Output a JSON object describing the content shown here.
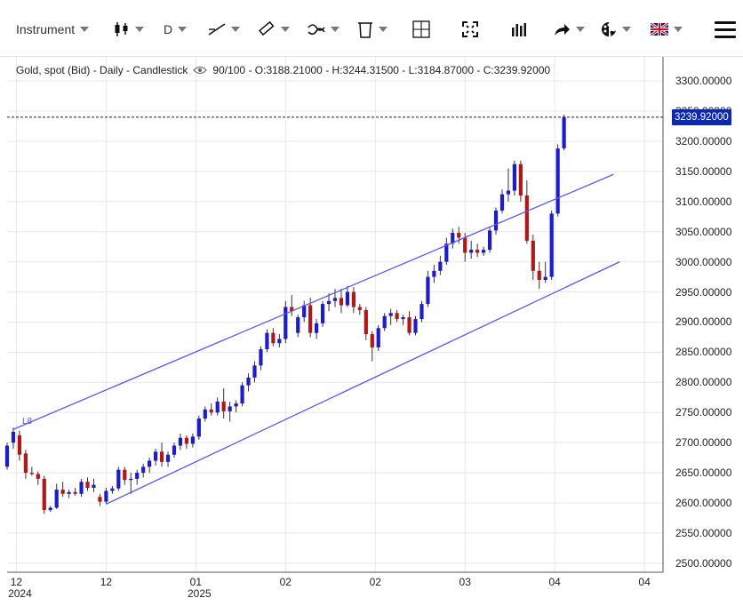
{
  "toolbar": {
    "instrument_label": "Instrument",
    "period_label": "D",
    "icons": [
      "candlestick-icon",
      "trend-line-icon",
      "ruler-icon",
      "overlay-icon",
      "delete-icon",
      "crosshair-icon",
      "fullscreen-icon",
      "volume-icon",
      "share-icon",
      "theme-icon",
      "uk-flag-icon",
      "hamburger-menu-icon"
    ]
  },
  "chart_data": {
    "type": "candlestick",
    "title": "Gold, spot (Bid) - Daily - Candlestick",
    "zoom": "90/100",
    "ohlc_readout": {
      "open": "O:3188.21000",
      "high": "H:3244.31500",
      "low": "L:3184.87000",
      "close": "C:3239.92000"
    },
    "last_price_label": "3239.92000",
    "last_price": 3239.92,
    "ylim": [
      2485,
      3340
    ],
    "y_ticks": [
      "3300.00000",
      "3250.00000",
      "3200.00000",
      "3150.00000",
      "3100.00000",
      "3050.00000",
      "3000.00000",
      "2950.00000",
      "2900.00000",
      "2850.00000",
      "2800.00000",
      "2750.00000",
      "2700.00000",
      "2650.00000",
      "2600.00000",
      "2550.00000",
      "2500.00000"
    ],
    "y_tick_values": [
      3300,
      3250,
      3200,
      3150,
      3100,
      3050,
      3000,
      2950,
      2900,
      2850,
      2800,
      2750,
      2700,
      2650,
      2600,
      2550,
      2500
    ],
    "x_ticks": [
      {
        "label": "12",
        "sublabel": "2024",
        "index": 1.5
      },
      {
        "label": "12",
        "sublabel": "",
        "index": 16
      },
      {
        "label": "01",
        "sublabel": "2025",
        "index": 30.5
      },
      {
        "label": "02",
        "sublabel": "",
        "index": 45
      },
      {
        "label": "02",
        "sublabel": "",
        "index": 59.5
      },
      {
        "label": "03",
        "sublabel": "",
        "index": 74
      },
      {
        "label": "04",
        "sublabel": "",
        "index": 88.5
      },
      {
        "label": "04",
        "sublabel": "",
        "index": 103
      }
    ],
    "x_range": [
      0,
      106
    ],
    "grid": true,
    "channel_lines": [
      {
        "name": "L8",
        "from": [
          1,
          2722
        ],
        "to": [
          98,
          3145
        ]
      },
      {
        "name": "",
        "from": [
          16,
          2598
        ],
        "to": [
          99,
          3000
        ]
      }
    ],
    "bullish_color": "#1c1cc8",
    "bearish_color": "#b01818",
    "candles": [
      {
        "o": 2660,
        "h": 2700,
        "l": 2655,
        "c": 2695
      },
      {
        "o": 2700,
        "h": 2725,
        "l": 2690,
        "c": 2718
      },
      {
        "o": 2712,
        "h": 2720,
        "l": 2670,
        "c": 2680
      },
      {
        "o": 2682,
        "h": 2688,
        "l": 2640,
        "c": 2650
      },
      {
        "o": 2650,
        "h": 2660,
        "l": 2645,
        "c": 2648
      },
      {
        "o": 2648,
        "h": 2652,
        "l": 2630,
        "c": 2640
      },
      {
        "o": 2640,
        "h": 2645,
        "l": 2582,
        "c": 2588
      },
      {
        "o": 2588,
        "h": 2595,
        "l": 2585,
        "c": 2592
      },
      {
        "o": 2592,
        "h": 2632,
        "l": 2590,
        "c": 2622
      },
      {
        "o": 2622,
        "h": 2635,
        "l": 2610,
        "c": 2615
      },
      {
        "o": 2615,
        "h": 2622,
        "l": 2608,
        "c": 2618
      },
      {
        "o": 2618,
        "h": 2625,
        "l": 2612,
        "c": 2615
      },
      {
        "o": 2615,
        "h": 2640,
        "l": 2610,
        "c": 2635
      },
      {
        "o": 2635,
        "h": 2642,
        "l": 2620,
        "c": 2625
      },
      {
        "o": 2625,
        "h": 2640,
        "l": 2618,
        "c": 2630
      },
      {
        "o": 2610,
        "h": 2615,
        "l": 2595,
        "c": 2602
      },
      {
        "o": 2602,
        "h": 2625,
        "l": 2598,
        "c": 2620
      },
      {
        "o": 2620,
        "h": 2628,
        "l": 2615,
        "c": 2624
      },
      {
        "o": 2624,
        "h": 2660,
        "l": 2620,
        "c": 2655
      },
      {
        "o": 2655,
        "h": 2660,
        "l": 2630,
        "c": 2638
      },
      {
        "o": 2638,
        "h": 2650,
        "l": 2615,
        "c": 2640
      },
      {
        "o": 2640,
        "h": 2655,
        "l": 2630,
        "c": 2650
      },
      {
        "o": 2650,
        "h": 2665,
        "l": 2642,
        "c": 2660
      },
      {
        "o": 2660,
        "h": 2675,
        "l": 2650,
        "c": 2670
      },
      {
        "o": 2670,
        "h": 2690,
        "l": 2662,
        "c": 2685
      },
      {
        "o": 2685,
        "h": 2700,
        "l": 2660,
        "c": 2668
      },
      {
        "o": 2668,
        "h": 2685,
        "l": 2660,
        "c": 2680
      },
      {
        "o": 2680,
        "h": 2700,
        "l": 2675,
        "c": 2695
      },
      {
        "o": 2695,
        "h": 2715,
        "l": 2688,
        "c": 2708
      },
      {
        "o": 2708,
        "h": 2712,
        "l": 2690,
        "c": 2698
      },
      {
        "o": 2698,
        "h": 2715,
        "l": 2692,
        "c": 2710
      },
      {
        "o": 2710,
        "h": 2745,
        "l": 2705,
        "c": 2740
      },
      {
        "o": 2740,
        "h": 2760,
        "l": 2735,
        "c": 2755
      },
      {
        "o": 2755,
        "h": 2765,
        "l": 2745,
        "c": 2750
      },
      {
        "o": 2750,
        "h": 2775,
        "l": 2745,
        "c": 2768
      },
      {
        "o": 2768,
        "h": 2790,
        "l": 2740,
        "c": 2752
      },
      {
        "o": 2752,
        "h": 2768,
        "l": 2735,
        "c": 2760
      },
      {
        "o": 2760,
        "h": 2770,
        "l": 2750,
        "c": 2765
      },
      {
        "o": 2765,
        "h": 2800,
        "l": 2760,
        "c": 2795
      },
      {
        "o": 2795,
        "h": 2815,
        "l": 2785,
        "c": 2808
      },
      {
        "o": 2808,
        "h": 2835,
        "l": 2800,
        "c": 2828
      },
      {
        "o": 2828,
        "h": 2860,
        "l": 2820,
        "c": 2855
      },
      {
        "o": 2855,
        "h": 2888,
        "l": 2850,
        "c": 2882
      },
      {
        "o": 2882,
        "h": 2890,
        "l": 2860,
        "c": 2865
      },
      {
        "o": 2865,
        "h": 2880,
        "l": 2858,
        "c": 2872
      },
      {
        "o": 2872,
        "h": 2935,
        "l": 2865,
        "c": 2925
      },
      {
        "o": 2925,
        "h": 2945,
        "l": 2910,
        "c": 2918
      },
      {
        "o": 2882,
        "h": 2912,
        "l": 2875,
        "c": 2908
      },
      {
        "o": 2908,
        "h": 2935,
        "l": 2900,
        "c": 2928
      },
      {
        "o": 2928,
        "h": 2940,
        "l": 2875,
        "c": 2882
      },
      {
        "o": 2882,
        "h": 2905,
        "l": 2872,
        "c": 2898
      },
      {
        "o": 2898,
        "h": 2935,
        "l": 2892,
        "c": 2930
      },
      {
        "o": 2930,
        "h": 2948,
        "l": 2918,
        "c": 2935
      },
      {
        "o": 2935,
        "h": 2955,
        "l": 2925,
        "c": 2940
      },
      {
        "o": 2940,
        "h": 2955,
        "l": 2915,
        "c": 2928
      },
      {
        "o": 2928,
        "h": 2960,
        "l": 2925,
        "c": 2950
      },
      {
        "o": 2950,
        "h": 2958,
        "l": 2915,
        "c": 2925
      },
      {
        "o": 2925,
        "h": 2930,
        "l": 2912,
        "c": 2920
      },
      {
        "o": 2920,
        "h": 2925,
        "l": 2870,
        "c": 2880
      },
      {
        "o": 2880,
        "h": 2885,
        "l": 2835,
        "c": 2858
      },
      {
        "o": 2858,
        "h": 2895,
        "l": 2852,
        "c": 2890
      },
      {
        "o": 2890,
        "h": 2915,
        "l": 2885,
        "c": 2910
      },
      {
        "o": 2910,
        "h": 2922,
        "l": 2895,
        "c": 2915
      },
      {
        "o": 2915,
        "h": 2920,
        "l": 2900,
        "c": 2905
      },
      {
        "o": 2905,
        "h": 2912,
        "l": 2895,
        "c": 2908
      },
      {
        "o": 2908,
        "h": 2918,
        "l": 2878,
        "c": 2882
      },
      {
        "o": 2882,
        "h": 2910,
        "l": 2878,
        "c": 2905
      },
      {
        "o": 2905,
        "h": 2935,
        "l": 2900,
        "c": 2930
      },
      {
        "o": 2930,
        "h": 2985,
        "l": 2925,
        "c": 2975
      },
      {
        "o": 2975,
        "h": 2995,
        "l": 2965,
        "c": 2985
      },
      {
        "o": 2985,
        "h": 3010,
        "l": 2978,
        "c": 3000
      },
      {
        "o": 3000,
        "h": 3040,
        "l": 2995,
        "c": 3030
      },
      {
        "o": 3030,
        "h": 3055,
        "l": 3022,
        "c": 3048
      },
      {
        "o": 3048,
        "h": 3058,
        "l": 3030,
        "c": 3040
      },
      {
        "o": 3040,
        "h": 3048,
        "l": 3000,
        "c": 3015
      },
      {
        "o": 3015,
        "h": 3035,
        "l": 3005,
        "c": 3020
      },
      {
        "o": 3020,
        "h": 3030,
        "l": 3008,
        "c": 3015
      },
      {
        "o": 3015,
        "h": 3025,
        "l": 3010,
        "c": 3020
      },
      {
        "o": 3020,
        "h": 3058,
        "l": 3015,
        "c": 3052
      },
      {
        "o": 3052,
        "h": 3090,
        "l": 3045,
        "c": 3085
      },
      {
        "o": 3085,
        "h": 3120,
        "l": 3080,
        "c": 3112
      },
      {
        "o": 3112,
        "h": 3155,
        "l": 3100,
        "c": 3118
      },
      {
        "o": 3118,
        "h": 3168,
        "l": 3110,
        "c": 3162
      },
      {
        "o": 3162,
        "h": 3168,
        "l": 3100,
        "c": 3110
      },
      {
        "o": 3110,
        "h": 3135,
        "l": 3030,
        "c": 3035
      },
      {
        "o": 3035,
        "h": 3045,
        "l": 2970,
        "c": 2985
      },
      {
        "o": 2985,
        "h": 3000,
        "l": 2955,
        "c": 2970
      },
      {
        "o": 2970,
        "h": 3000,
        "l": 2965,
        "c": 2975
      },
      {
        "o": 2975,
        "h": 3085,
        "l": 2970,
        "c": 3080
      },
      {
        "o": 3080,
        "h": 3195,
        "l": 3075,
        "c": 3188
      },
      {
        "o": 3188.21,
        "h": 3244.315,
        "l": 3184.87,
        "c": 3239.92
      }
    ]
  }
}
